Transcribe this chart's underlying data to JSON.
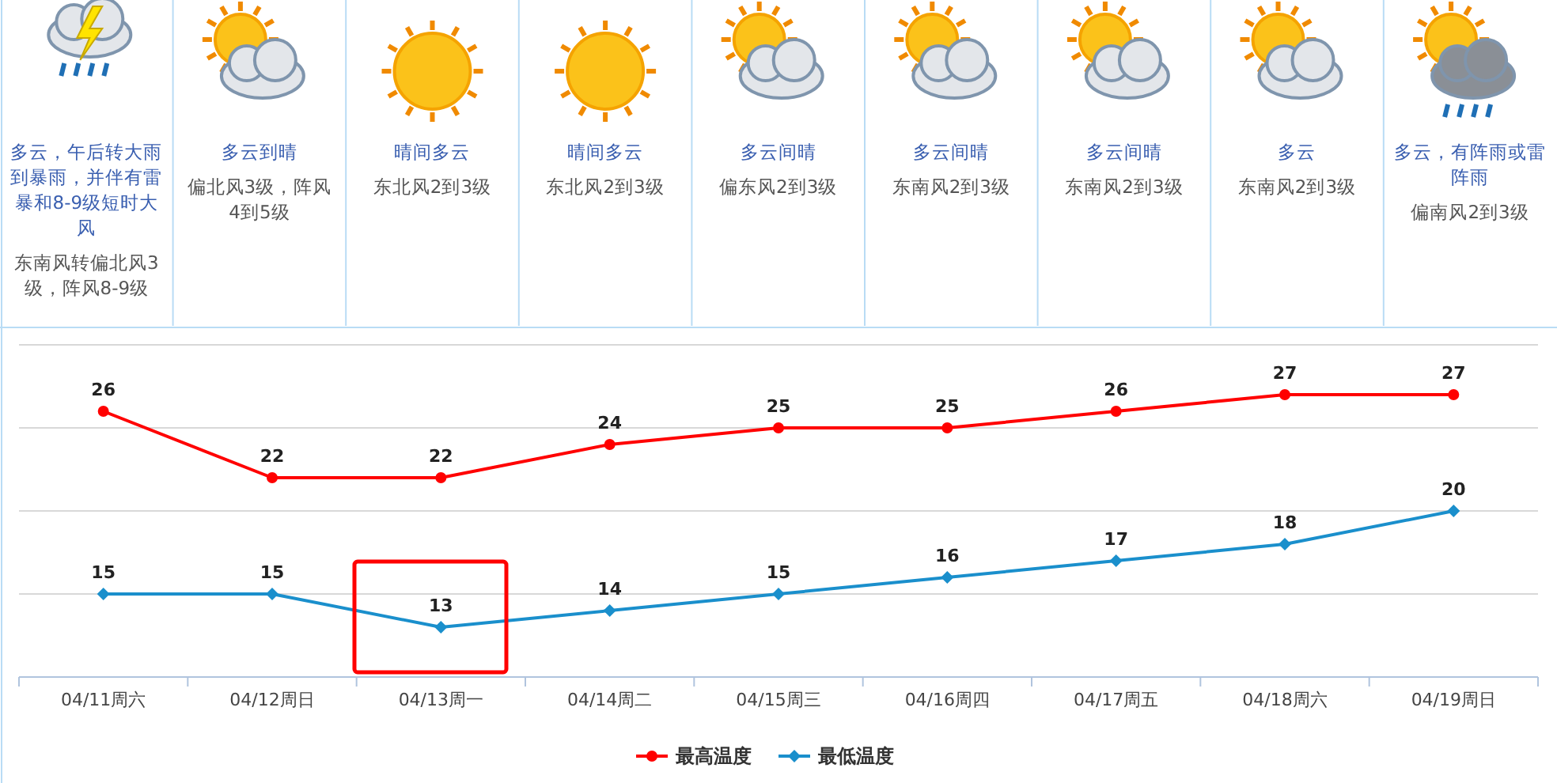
{
  "chart_data": {
    "type": "line",
    "categories": [
      "04/11周六",
      "04/12周日",
      "04/13周一",
      "04/14周二",
      "04/15周三",
      "04/16周四",
      "04/17周五",
      "04/18周六",
      "04/19周日"
    ],
    "series": [
      {
        "name": "最高温度",
        "color": "#ff0000",
        "marker": "circle",
        "values": [
          26,
          22,
          22,
          24,
          25,
          25,
          26,
          27,
          27
        ]
      },
      {
        "name": "最低温度",
        "color": "#1a8fcc",
        "marker": "diamond",
        "values": [
          15,
          15,
          13,
          14,
          15,
          16,
          17,
          18,
          20
        ]
      }
    ],
    "ylim": [
      10,
      30
    ],
    "yticks": [
      {
        "value": 10,
        "label": null
      },
      {
        "value": 15,
        "label": null
      },
      {
        "value": 20,
        "label": null
      },
      {
        "value": 25,
        "label": null
      },
      {
        "value": 30,
        "label": null
      }
    ],
    "tick_labels": "x",
    "grid": "y",
    "data_labels": true,
    "legend": "bottom",
    "annotations": [
      "多云，午后转大雨到暴雨，并伴有雷暴和8-9级短时大风",
      "东南风转偏北风3级，阵风8-9级",
      "多云到晴",
      "偏北风3级，阵风4到5级",
      "晴间多云",
      "东北风2到3级",
      "晴间多云",
      "东北风2到3级",
      "多云间晴",
      "偏东风2到3级",
      "多云间晴",
      "东南风2到3级",
      "多云间晴",
      "东南风2到3级",
      "多云",
      "东南风2到3级",
      "多云，有阵雨或雷阵雨",
      "偏南风2到3级"
    ]
  }
}
